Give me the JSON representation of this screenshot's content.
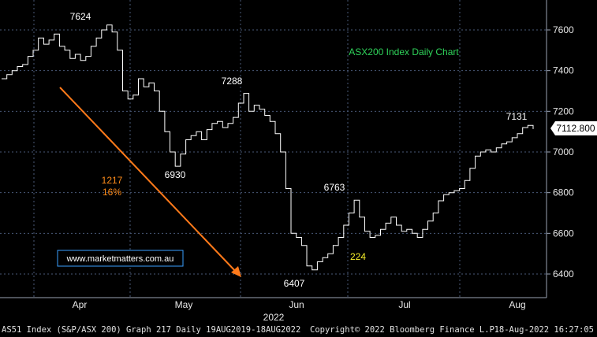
{
  "chart_data": {
    "type": "line",
    "title": "ASX200 Index Daily Chart",
    "year_label": "2022",
    "x_tick_labels": [
      "Apr",
      "May",
      "Jun",
      "Jul",
      "Aug"
    ],
    "y_ticks": [
      6400,
      6600,
      6800,
      7000,
      7200,
      7400,
      7600
    ],
    "ylim": [
      6280,
      7700
    ],
    "last_price_label": "7112.800",
    "series": [
      {
        "values": [
          7360,
          7380,
          7400,
          7420,
          7430,
          7470,
          7500,
          7560,
          7530,
          7550,
          7580,
          7520,
          7500,
          7460,
          7480,
          7450,
          7470,
          7520,
          7560,
          7600,
          7624,
          7590,
          7500,
          7300,
          7260,
          7280,
          7360,
          7320,
          7340,
          7300,
          7200,
          7100,
          7000,
          6930,
          6990,
          7060,
          7080,
          7100,
          7060,
          7110,
          7140,
          7150,
          7120,
          7140,
          7170,
          7240,
          7288,
          7200,
          7230,
          7210,
          7180,
          7150,
          7090,
          7000,
          6820,
          6600,
          6580,
          6540,
          6440,
          6420,
          6460,
          6480,
          6500,
          6540,
          6580,
          6640,
          6700,
          6763,
          6680,
          6610,
          6580,
          6590,
          6620,
          6650,
          6680,
          6640,
          6610,
          6620,
          6600,
          6580,
          6620,
          6660,
          6700,
          6760,
          6790,
          6800,
          6810,
          6820,
          6860,
          6920,
          6980,
          7000,
          7010,
          7000,
          7020,
          7040,
          7050,
          7070,
          7090,
          7120,
          7131,
          7112.8
        ]
      }
    ],
    "annotations": [
      {
        "text": "7624",
        "color": "#ffffff"
      },
      {
        "text": "7288",
        "color": "#ffffff"
      },
      {
        "text": "6930",
        "color": "#ffffff"
      },
      {
        "text": "6763",
        "color": "#ffffff"
      },
      {
        "text": "6407",
        "color": "#ffffff"
      },
      {
        "text": "7131",
        "color": "#ffffff"
      },
      {
        "text": "1217",
        "color": "#ff8c1a"
      },
      {
        "text": "16%",
        "color": "#ff8c1a"
      },
      {
        "text": "224",
        "color": "#f5ee2a"
      }
    ],
    "watermark": "www.marketmatters.com.au",
    "colors": {
      "background": "#000000",
      "grid": "#4a5a78",
      "line": "#ffffff",
      "arrow": "#ff7a1a",
      "title": "#2fd35a",
      "watermark_border": "#3aa0ff"
    }
  },
  "footer": {
    "left": "AS51 Index (S&P/ASX 200) Graph 217  Daily 19AUG2019-18AUG2022",
    "center": "Copyright© 2022 Bloomberg Finance L.P.",
    "right": "18-Aug-2022 16:27:05"
  }
}
